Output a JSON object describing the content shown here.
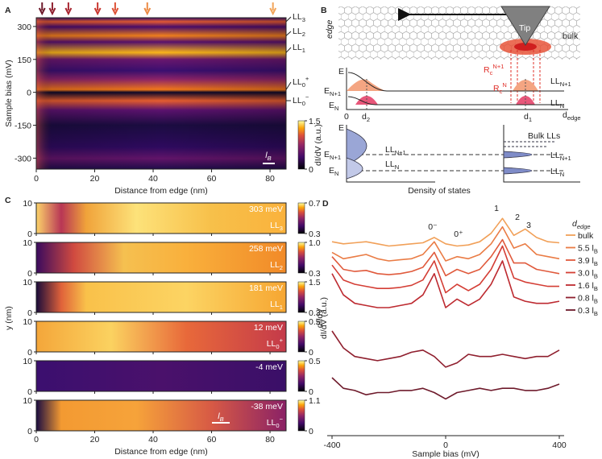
{
  "chart_data": [
    {
      "type": "heatmap",
      "panel": "A",
      "xlabel": "Distance from edge (nm)",
      "ylabel": "Sample bias (mV)",
      "xlim": [
        0,
        85.5
      ],
      "xticks": [
        0,
        20,
        40,
        60,
        80
      ],
      "ylim": [
        -350,
        340
      ],
      "yticks": [
        -300,
        -150,
        0,
        150,
        300
      ],
      "colorbar": {
        "label": "dI/dV (a.u.)",
        "clim": [
          0,
          1.5
        ],
        "ticks": [
          0,
          1.5
        ]
      },
      "levels": [
        {
          "text": "LL",
          "sub": "3"
        },
        {
          "text": "LL",
          "sub": "2"
        },
        {
          "text": "LL",
          "sub": "1"
        },
        {
          "text": "LL",
          "sub": "0",
          "sup": "+"
        },
        {
          "text": "LL",
          "sub": "0",
          "sup": "−"
        }
      ],
      "markers": {
        "x": [
          2,
          5.5,
          11,
          21,
          27,
          38,
          81
        ],
        "colors": [
          "#6e1a2b",
          "#8f1f2e",
          "#a82530",
          "#c8362f",
          "#dd5236",
          "#ec8a44",
          "#f2a55a"
        ]
      },
      "scalebar": {
        "text": "l",
        "sub": "B"
      }
    },
    {
      "type": "heatmap-stack",
      "panel": "C",
      "xlabel": "Distance from edge (nm)",
      "ylabel": "y (nm)",
      "colorbar_label": "dI/dV",
      "xlim": [
        0,
        85.5
      ],
      "xticks": [
        0,
        20,
        40,
        60,
        80
      ],
      "ylim": [
        0,
        10
      ],
      "yticks": [
        0,
        10
      ],
      "panels": [
        {
          "energy": "303 meV",
          "level": {
            "text": "LL",
            "sub": "3"
          },
          "clim": [
            0.3,
            0.7
          ],
          "cticks": [
            0.3,
            0.7
          ]
        },
        {
          "energy": "258 meV",
          "level": {
            "text": "LL",
            "sub": "2"
          },
          "clim": [
            0.3,
            1
          ],
          "cticks": [
            0.3,
            {
              "value": 1,
              "label": "1.0"
            }
          ]
        },
        {
          "energy": "181 meV",
          "level": {
            "text": "LL",
            "sub": "1"
          },
          "clim": [
            0.3,
            1.5
          ],
          "cticks": [
            0.3,
            1.5
          ]
        },
        {
          "energy": "12 meV",
          "level": {
            "text": "LL",
            "sub": "0",
            "sup": "+"
          },
          "clim": [
            0,
            0.5
          ],
          "cticks": [
            0,
            0.5
          ]
        },
        {
          "energy": "-4 meV",
          "level": null,
          "clim": [
            0,
            0.5
          ],
          "cticks": [
            0,
            0.5
          ]
        },
        {
          "energy": "-38 meV",
          "level": {
            "text": "LL",
            "sub": "0",
            "sup": "−"
          },
          "clim": [
            0,
            1.1
          ],
          "cticks": [
            0,
            1.1
          ]
        }
      ],
      "scalebar": {
        "text": "l",
        "sub": "B"
      }
    },
    {
      "type": "line",
      "panel": "D",
      "xlabel": "Sample bias (mV)",
      "ylabel": "dI/dV (a.u.)",
      "xlim": [
        -400,
        400
      ],
      "xticks": [
        -400,
        0,
        400
      ],
      "ylim": [
        0,
        10.5
      ],
      "x": [
        -400,
        -360,
        -320,
        -280,
        -240,
        -200,
        -160,
        -120,
        -80,
        -40,
        0,
        40,
        80,
        120,
        160,
        200,
        240,
        280,
        320,
        360,
        400
      ],
      "legend_title": {
        "text": "d",
        "sub": "edge"
      },
      "annotations": [
        "1",
        "2",
        "3",
        "0⁻",
        "0⁺"
      ],
      "series": [
        {
          "name": "bulk",
          "color": "#f1a058",
          "values": [
            8.9,
            8.8,
            8.85,
            8.9,
            8.8,
            8.7,
            8.75,
            8.8,
            8.85,
            9.1,
            8.8,
            8.7,
            8.75,
            8.9,
            9.3,
            10,
            9.2,
            9.5,
            9.1,
            8.9,
            8.85
          ]
        },
        {
          "name": "5.5 l",
          "name_sub": "B",
          "color": "#ea7c45",
          "values": [
            8.4,
            8.1,
            8.2,
            8.3,
            8.1,
            8,
            8.05,
            8.1,
            8.3,
            8.9,
            8,
            8.2,
            8.1,
            8.3,
            8.8,
            9.6,
            8.6,
            8.8,
            8.3,
            8.2,
            8.1
          ]
        },
        {
          "name": "3.9 l",
          "name_sub": "B",
          "color": "#e05a3c",
          "values": [
            8.2,
            7.6,
            7.5,
            7.55,
            7.4,
            7.35,
            7.4,
            7.5,
            7.7,
            8.4,
            7.3,
            7.6,
            7.4,
            7.6,
            8.2,
            9,
            7.9,
            7.9,
            7.6,
            7.5,
            7.4
          ]
        },
        {
          "name": "3.0 l",
          "name_sub": "B",
          "color": "#d43e35",
          "values": [
            7.8,
            7.1,
            6.9,
            6.8,
            6.7,
            6.7,
            6.75,
            6.85,
            7.1,
            8,
            6.5,
            6.9,
            6.6,
            6.9,
            7.6,
            8.7,
            7.2,
            7,
            6.9,
            6.8,
            6.8
          ]
        },
        {
          "name": "1.6 l",
          "name_sub": "B",
          "color": "#bd2a30",
          "values": [
            7.4,
            6.4,
            6,
            5.9,
            5.8,
            5.8,
            5.9,
            6,
            6.4,
            7.4,
            5.8,
            6.2,
            5.9,
            6.2,
            6.9,
            8,
            6.3,
            6.1,
            6,
            6,
            6.1
          ]
        },
        {
          "name": "0.8 l",
          "name_sub": "B",
          "color": "#8f1f2e",
          "values": [
            4.7,
            3.9,
            3.5,
            3.4,
            3.3,
            3.4,
            3.5,
            3.7,
            3.8,
            3.5,
            3,
            3.2,
            3.6,
            3.5,
            3.5,
            3.6,
            3.5,
            3.4,
            3.5,
            3.5,
            3.8
          ]
        },
        {
          "name": "0.3 l",
          "name_sub": "B",
          "color": "#6e1a2b",
          "values": [
            2.5,
            2,
            1.9,
            1.7,
            1.8,
            1.8,
            1.9,
            1.9,
            2,
            1.8,
            1.5,
            1.8,
            1.9,
            2,
            1.9,
            2,
            2,
            1.9,
            1.9,
            2,
            2.2
          ]
        }
      ]
    }
  ],
  "diagram": {
    "texts": [
      "B",
      "Tip",
      "edge",
      "bulk",
      "E",
      {
        "text": "E",
        "sub": "N+1"
      },
      {
        "text": "E",
        "sub": "N"
      },
      "0",
      {
        "text": "d",
        "sub": "2"
      },
      {
        "text": "d",
        "sub": "1"
      },
      {
        "text": "d",
        "sub": "edge"
      },
      {
        "text": "R",
        "sub": "c",
        "sup": "N+1"
      },
      {
        "text": "R",
        "sub": "c",
        "sup": "N"
      },
      {
        "text": "LL",
        "sub": "N+1"
      },
      {
        "text": "LL",
        "sub": "N"
      },
      "E",
      {
        "text": "E",
        "sub": "N+1"
      },
      {
        "text": "E",
        "sub": "N"
      },
      {
        "text": "LL",
        "sub": "N+1"
      },
      {
        "text": "LL",
        "sub": "N"
      },
      "Bulk LLs",
      {
        "text": "LL",
        "sub": "N+1"
      },
      {
        "text": "LL",
        "sub": "N"
      },
      "Density of states"
    ]
  }
}
